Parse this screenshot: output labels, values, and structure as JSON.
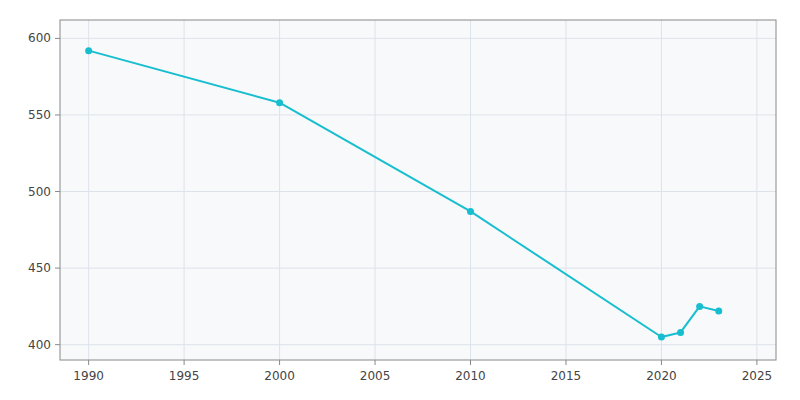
{
  "chart_data": {
    "type": "line",
    "x": [
      1990,
      2000,
      2010,
      2020,
      2021,
      2022,
      2023
    ],
    "values": [
      592,
      558,
      487,
      405,
      408,
      425,
      422
    ],
    "color": "#17BECF",
    "marker": "circle",
    "xlim": [
      1988.5,
      2026
    ],
    "ylim": [
      390,
      612
    ],
    "xticks": [
      1990,
      1995,
      2000,
      2005,
      2010,
      2015,
      2020,
      2025
    ],
    "yticks": [
      400,
      450,
      500,
      550,
      600
    ],
    "grid": true
  }
}
